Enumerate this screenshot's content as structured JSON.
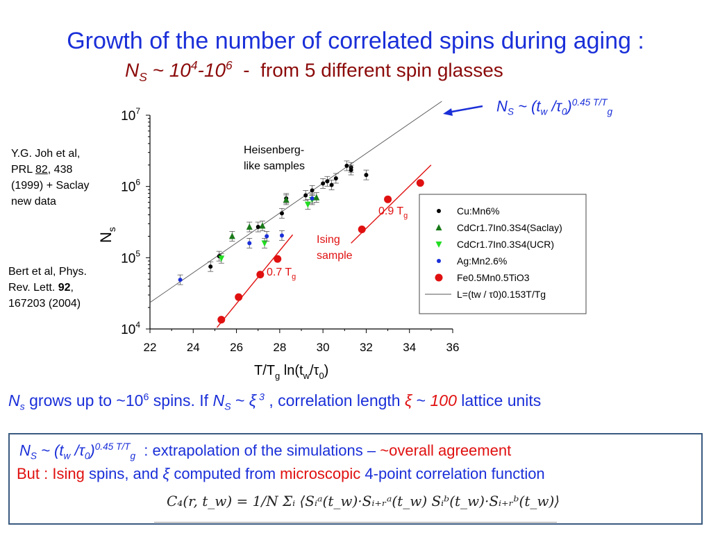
{
  "title": {
    "line1": "Growth of the number of correlated spins during aging :",
    "line2_ns": "N",
    "line2_sub": "S",
    "line2_tilde": " ~ 10",
    "line2_exp1": "4",
    "line2_dash": "-10",
    "line2_exp2": "6",
    "line2_rest": "  -  from 5 different spin glasses"
  },
  "refs": {
    "ref1_line1": "Y.G. Joh et al,",
    "ref1_line2a": "PRL ",
    "ref1_line2b": "82",
    "ref1_line2c": ", 438",
    "ref1_line3": "(1999) + Saclay",
    "ref1_line4": "new data",
    "ref2_line1": "Bert et al, Phys.",
    "ref2_line2a": "Rev. Lett. ",
    "ref2_line2b": "92",
    "ref2_line2c": ",",
    "ref2_line3": "167203 (2004)"
  },
  "law": {
    "n": "N",
    "sub": "S",
    "mid": " ~ (t",
    "w": "w",
    "slash": " /",
    "tau": "τ",
    "zero": "0",
    "close": ")",
    "exp": "0.45 T/T",
    "g": "g"
  },
  "summary": {
    "n": "N",
    "s": "s",
    "t1": " grows up to ~10",
    "e6": "6",
    "t2": " spins. If ",
    "n2": "N",
    "s2": "S",
    "t3": " ~ ",
    "xi": "ξ",
    "e3": " 3",
    "t4": " , correlation length ",
    "xi2": "ξ",
    "t5": " ~ ",
    "hundred": "100",
    "t6": " lattice units"
  },
  "box": {
    "n": "N",
    "s": "S",
    "mid": " ~ (t",
    "w": "w",
    "slash": " /",
    "tau": "τ",
    "zero": "0",
    "close": ")",
    "exp": "0.45 T/T",
    "g": "g",
    "t1": "  : extrapolation of the simulations – ",
    "t2": "~overall agreement",
    "but": "But : ",
    "ising": "Ising",
    "t3": " spins, and ",
    "xi": "ξ",
    "t4": " computed from ",
    "micro": "microscopic",
    "t5": " 4-point correlation function",
    "formula": "C₄(r, t_w) = 1/N Σᵢ ⟨Sᵢᵃ(t_w)·Sᵢ₊ᵣᵃ(t_w) Sᵢᵇ(t_w)·Sᵢ₊ᵣᵇ(t_w)⟩"
  },
  "colors": {
    "title_blue": "#1a2fd8",
    "subtitle_red": "#8b0a0a",
    "ising_red": "#e01010",
    "cumn": "#000000",
    "cdcr_saclay": "#1a7a1a",
    "cdcr_ucr": "#22dd22",
    "agmn": "#1a2fd8",
    "femn": "#e01010",
    "box_border": "#3a5a80"
  },
  "chart_data": {
    "type": "scatter",
    "xlabel": "T/Tg ln(tw/τ0)",
    "ylabel": "Ns",
    "xlim": [
      22,
      36
    ],
    "ylim_log10": [
      4,
      7
    ],
    "y_scale": "log",
    "x_ticks": [
      "22",
      "24",
      "26",
      "28",
      "30",
      "32",
      "34",
      "36"
    ],
    "y_ticks": [
      {
        "base": "10",
        "exp": "4"
      },
      {
        "base": "10",
        "exp": "5"
      },
      {
        "base": "10",
        "exp": "6"
      },
      {
        "base": "10",
        "exp": "7"
      }
    ],
    "annotations": {
      "heisenberg_1": "Heisenberg-",
      "heisenberg_2": "like samples",
      "ising_1": "Ising",
      "ising_2": "sample",
      "t07_a": "0.7 T",
      "t07_b": "g",
      "t09_a": "0.9 T",
      "t09_b": "g"
    },
    "legend": {
      "placement": "right",
      "entries": [
        {
          "label": "Cu:Mn6%",
          "marker": "circle-small",
          "color": "#000000"
        },
        {
          "label": "CdCr1.7In0.3S4(Saclay)",
          "marker": "triangle-up",
          "color": "#1a7a1a"
        },
        {
          "label": "CdCr1.7In0.3S4(UCR)",
          "marker": "triangle-down",
          "color": "#22dd22"
        },
        {
          "label": "Ag:Mn2.6%",
          "marker": "circle-small",
          "color": "#1a2fd8"
        },
        {
          "label": "Fe0.5Mn0.5TiO3",
          "marker": "circle-large",
          "color": "#e01010"
        },
        {
          "label": "L=(tw / τ0)0.153T/Tg",
          "marker": "line",
          "color": "#555555"
        }
      ]
    },
    "series": [
      {
        "name": "Cu:Mn6%",
        "points": [
          [
            24.8,
            75000
          ],
          [
            25.2,
            105000
          ],
          [
            27.0,
            270000
          ],
          [
            28.1,
            420000
          ],
          [
            28.3,
            680000
          ],
          [
            29.2,
            750000
          ],
          [
            29.5,
            880000
          ],
          [
            30.0,
            1100000
          ],
          [
            30.2,
            1180000
          ],
          [
            30.4,
            1050000
          ],
          [
            30.6,
            1300000
          ],
          [
            31.1,
            1950000
          ],
          [
            31.3,
            1850000
          ],
          [
            31.3,
            1700000
          ],
          [
            32.0,
            1450000
          ]
        ]
      },
      {
        "name": "CdCr1.7In0.3S4(Saclay)",
        "points": [
          [
            25.8,
            200000
          ],
          [
            26.6,
            270000
          ],
          [
            27.2,
            280000
          ],
          [
            28.3,
            650000
          ],
          [
            29.7,
            700000
          ]
        ]
      },
      {
        "name": "CdCr1.7In0.3S4(UCR)",
        "points": [
          [
            25.3,
            98000
          ],
          [
            27.3,
            160000
          ],
          [
            29.3,
            560000
          ],
          [
            29.5,
            650000
          ]
        ]
      },
      {
        "name": "Ag:Mn2.6%",
        "points": [
          [
            23.4,
            49000
          ],
          [
            26.6,
            160000
          ],
          [
            27.4,
            200000
          ],
          [
            28.1,
            205000
          ],
          [
            29.5,
            680000
          ]
        ]
      },
      {
        "name": "Fe0.5Mn0.5TiO3",
        "points": [
          [
            25.3,
            13500
          ],
          [
            26.1,
            28000
          ],
          [
            27.1,
            58000
          ],
          [
            27.9,
            96000
          ],
          [
            31.8,
            250000
          ],
          [
            33.0,
            660000
          ],
          [
            34.5,
            1120000
          ]
        ]
      }
    ],
    "fit_lines": [
      {
        "name": "L=(tw / τ0)0.153T/Tg",
        "x": [
          22,
          35.5
        ],
        "y": [
          23500,
          15700000
        ]
      },
      {
        "name": "0.7 Tg",
        "x": [
          25.1,
          28.6
        ],
        "y": [
          10500,
          210000
        ]
      },
      {
        "name": "0.9 Tg",
        "x": [
          31.3,
          35.0
        ],
        "y": [
          160000,
          2000000
        ]
      }
    ]
  }
}
